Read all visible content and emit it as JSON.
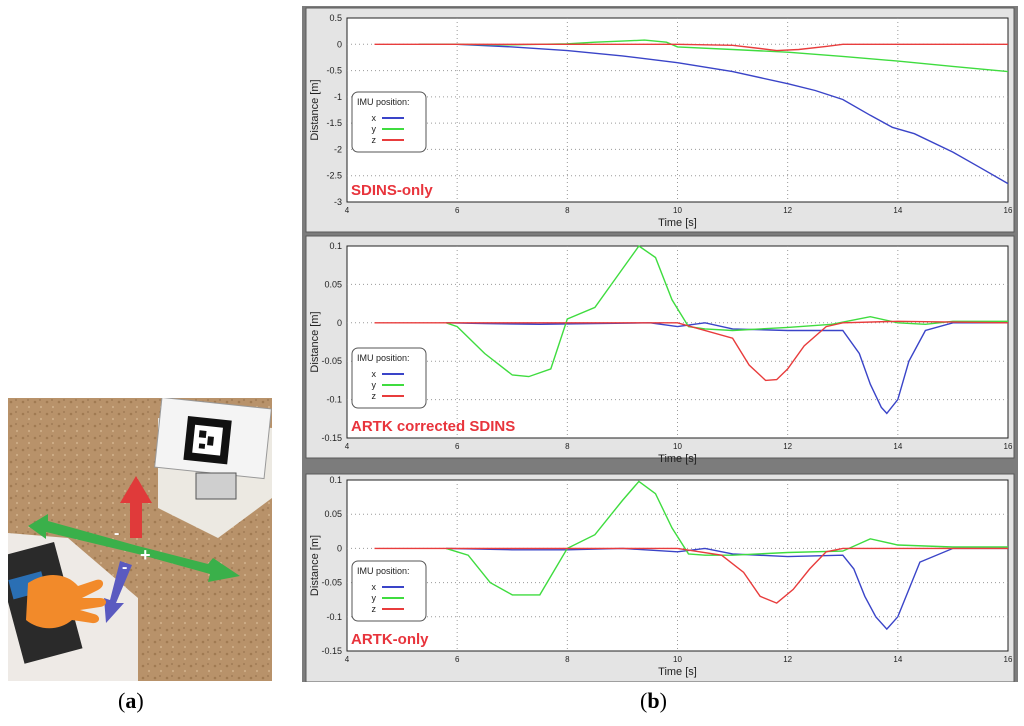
{
  "captions": {
    "a_open": "(",
    "a_letter": "a",
    "a_close": ")",
    "b_open": "(",
    "b_letter": "b",
    "b_close": ")"
  },
  "colors": {
    "x": "#3a44c8",
    "y": "#3fdc3f",
    "z": "#e83c3c",
    "panel_bg": "#7c7c7c",
    "plot_bg": "#ffffff",
    "label_red": "#e8343c"
  },
  "photo": {
    "description_icons": [
      "arrow-red-up-icon",
      "arrow-green-horizontal-icon",
      "arrow-blue-diagonal-icon",
      "hand-icon",
      "marker-icon"
    ],
    "axis_signs": {
      "minus_left": "-",
      "plus_right": "+",
      "minus_down": "-"
    }
  },
  "chart_data": [
    {
      "type": "line",
      "label": "SDINS-only",
      "xlabel": "Time [s]",
      "ylabel": "Distance [m]",
      "xlim": [
        4,
        16
      ],
      "ylim": [
        -3,
        0.5
      ],
      "xticks": [
        4,
        6,
        8,
        10,
        12,
        14,
        16
      ],
      "yticks": [
        0.5,
        0,
        -0.5,
        -1,
        -1.5,
        -2,
        -2.5,
        -3
      ],
      "ytick_labels": [
        "0.5",
        "0",
        "-0.5",
        "-1",
        "-1.5",
        "-2",
        "-2.5",
        "-3"
      ],
      "grid": true,
      "legend": {
        "title": "IMU position:",
        "placement": "center-left",
        "entries": [
          "x",
          "y",
          "z"
        ]
      },
      "series": [
        {
          "name": "x",
          "color": "#3a44c8",
          "x": [
            5.3,
            6,
            7,
            8,
            9,
            10,
            11,
            12,
            12.5,
            13,
            13.5,
            13.9,
            14.3,
            15,
            15.5,
            16
          ],
          "y": [
            0,
            0,
            -0.05,
            -0.12,
            -0.22,
            -0.35,
            -0.52,
            -0.75,
            -0.88,
            -1.05,
            -1.35,
            -1.58,
            -1.7,
            -2.05,
            -2.35,
            -2.65
          ]
        },
        {
          "name": "y",
          "color": "#3fdc3f",
          "x": [
            5.3,
            6,
            7,
            8,
            8.5,
            9,
            9.4,
            9.8,
            10,
            11,
            12,
            13,
            14,
            15,
            16
          ],
          "y": [
            0,
            0,
            -0.01,
            0.01,
            0.04,
            0.06,
            0.08,
            0.04,
            -0.05,
            -0.1,
            -0.15,
            -0.23,
            -0.32,
            -0.42,
            -0.52
          ]
        },
        {
          "name": "z",
          "color": "#e83c3c",
          "x": [
            4.5,
            6,
            8,
            10,
            11,
            11.5,
            11.8,
            12.2,
            12.7,
            13,
            14,
            15,
            16
          ],
          "y": [
            0,
            0,
            0,
            0,
            -0.02,
            -0.08,
            -0.12,
            -0.1,
            -0.04,
            0,
            0,
            0,
            0
          ]
        }
      ]
    },
    {
      "type": "line",
      "label": "ARTK corrected SDINS",
      "xlabel": "Time [s]",
      "ylabel": "Distance [m]",
      "xlim": [
        4,
        16
      ],
      "ylim": [
        -0.15,
        0.1
      ],
      "xticks": [
        4,
        6,
        8,
        10,
        12,
        14,
        16
      ],
      "yticks": [
        0.1,
        0.05,
        0,
        -0.05,
        -0.1,
        -0.15
      ],
      "ytick_labels": [
        "0.1",
        "0.05",
        "0",
        "-0.05",
        "-0.1",
        "-0.15"
      ],
      "grid": true,
      "legend": {
        "title": "IMU position:",
        "placement": "bottom-left",
        "entries": [
          "x",
          "y",
          "z"
        ]
      },
      "series": [
        {
          "name": "x",
          "color": "#3a44c8",
          "x": [
            5.8,
            6.5,
            7.5,
            8.5,
            9.5,
            10,
            10.5,
            11,
            12,
            13,
            13.3,
            13.5,
            13.7,
            13.8,
            14,
            14.2,
            14.5,
            15,
            16
          ],
          "y": [
            0,
            -0.001,
            -0.002,
            -0.001,
            0,
            -0.005,
            0,
            -0.008,
            -0.01,
            -0.01,
            -0.04,
            -0.08,
            -0.11,
            -0.118,
            -0.1,
            -0.05,
            -0.01,
            0,
            0
          ]
        },
        {
          "name": "y",
          "color": "#3fdc3f",
          "x": [
            5.8,
            6,
            6.5,
            7,
            7.3,
            7.7,
            8,
            8.5,
            9,
            9.3,
            9.6,
            9.9,
            10.2,
            10.5,
            11,
            12,
            12.8,
            13.5,
            14,
            14.5,
            15,
            16
          ],
          "y": [
            0,
            -0.005,
            -0.04,
            -0.068,
            -0.07,
            -0.06,
            0.005,
            0.02,
            0.07,
            0.1,
            0.085,
            0.03,
            -0.005,
            -0.008,
            -0.01,
            -0.006,
            -0.002,
            0.008,
            0,
            -0.002,
            0.002,
            0.002
          ]
        },
        {
          "name": "z",
          "color": "#e83c3c",
          "x": [
            4.5,
            6,
            8,
            10,
            11,
            11.3,
            11.6,
            11.8,
            12,
            12.3,
            12.7,
            13,
            14,
            16
          ],
          "y": [
            0,
            0,
            0,
            0,
            -0.02,
            -0.055,
            -0.075,
            -0.074,
            -0.06,
            -0.03,
            -0.005,
            0,
            0.002,
            0
          ]
        }
      ]
    },
    {
      "type": "line",
      "label": "ARTK-only",
      "xlabel": "Time [s]",
      "ylabel": "Distance [m]",
      "xlim": [
        4,
        16
      ],
      "ylim": [
        -0.15,
        0.1
      ],
      "xticks": [
        4,
        6,
        8,
        10,
        12,
        14,
        16
      ],
      "yticks": [
        0.1,
        0.05,
        0,
        -0.05,
        -0.1,
        -0.15
      ],
      "ytick_labels": [
        "0.1",
        "0.05",
        "0",
        "-0.05",
        "-0.1",
        "-0.15"
      ],
      "grid": true,
      "legend": {
        "title": "IMU position:",
        "placement": "bottom-left",
        "entries": [
          "x",
          "y",
          "z"
        ]
      },
      "series": [
        {
          "name": "x",
          "color": "#3a44c8",
          "x": [
            5.8,
            7,
            8,
            9,
            10,
            10.5,
            11,
            12,
            13,
            13.2,
            13.4,
            13.6,
            13.8,
            14,
            14.2,
            14.4,
            15,
            16
          ],
          "y": [
            0,
            -0.002,
            -0.002,
            0,
            -0.005,
            0,
            -0.008,
            -0.012,
            -0.01,
            -0.03,
            -0.07,
            -0.1,
            -0.118,
            -0.1,
            -0.06,
            -0.02,
            0,
            0
          ]
        },
        {
          "name": "y",
          "color": "#3fdc3f",
          "x": [
            5.8,
            6.2,
            6.6,
            7,
            7.5,
            8,
            8.5,
            9,
            9.3,
            9.6,
            9.9,
            10.2,
            10.5,
            11,
            12,
            13,
            13.5,
            14,
            15,
            16
          ],
          "y": [
            0,
            -0.01,
            -0.05,
            -0.068,
            -0.068,
            0.0,
            0.02,
            0.07,
            0.098,
            0.08,
            0.03,
            -0.008,
            -0.01,
            -0.01,
            -0.006,
            -0.004,
            0.014,
            0.005,
            0.002,
            0.002
          ]
        },
        {
          "name": "z",
          "color": "#e83c3c",
          "x": [
            4.5,
            6,
            8,
            10,
            10.8,
            11.2,
            11.5,
            11.8,
            12.1,
            12.4,
            12.7,
            13,
            14,
            16
          ],
          "y": [
            0,
            0,
            0,
            0,
            -0.01,
            -0.035,
            -0.07,
            -0.08,
            -0.06,
            -0.03,
            -0.005,
            0,
            0,
            0
          ]
        }
      ]
    }
  ]
}
